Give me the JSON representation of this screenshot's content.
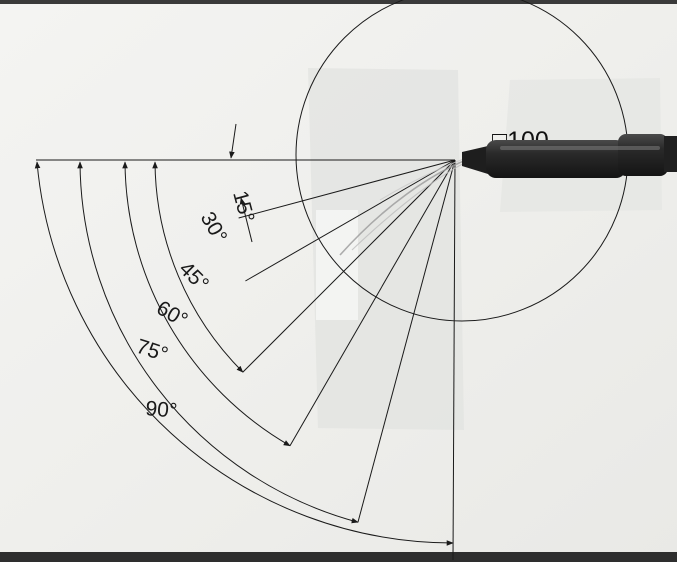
{
  "photo": {
    "circle_label": "□100",
    "angle_labels": [
      "15°",
      "30°",
      "45°",
      "60°",
      "75°",
      "90°"
    ],
    "angles_deg": [
      15,
      30,
      45,
      60,
      75,
      90
    ],
    "colors": {
      "paper": "#f1f1ef",
      "ink": "#1a1a1a",
      "tape": "#e3e4e1",
      "cable": "#262626"
    }
  }
}
